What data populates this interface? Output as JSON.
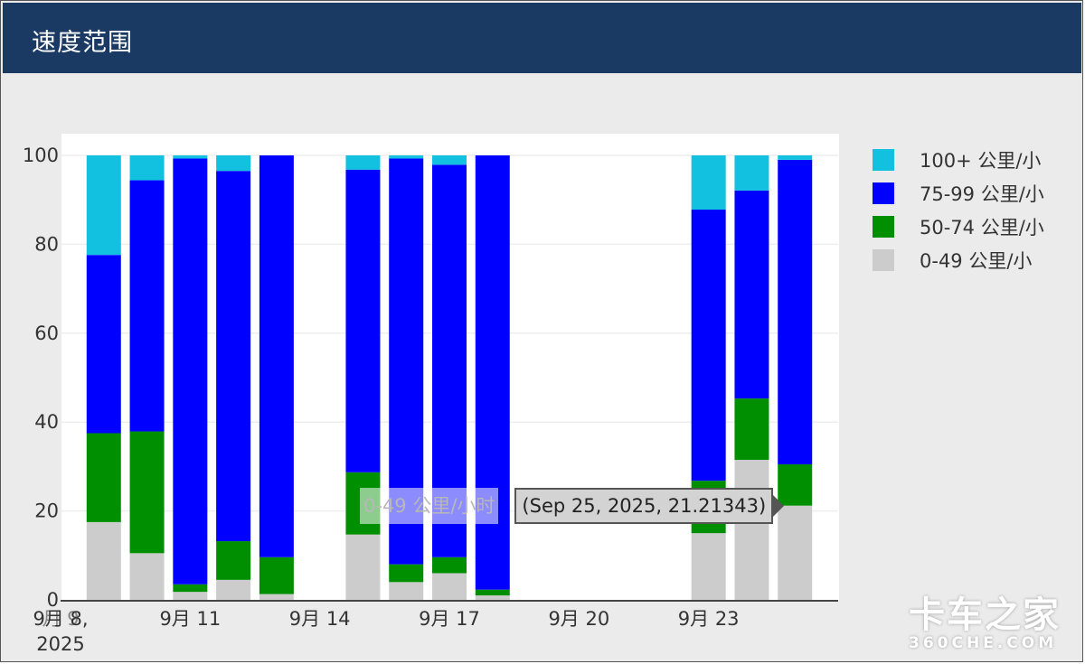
{
  "header": {
    "title": "速度范围"
  },
  "colors": {
    "header_bg": "#1b3a63",
    "panel_bg": "#ebebeb",
    "plot_bg": "#ffffff"
  },
  "chart_data": {
    "type": "bar",
    "stacked": true,
    "title": "速度范围",
    "xlabel": "",
    "ylabel": "",
    "ylim": [
      0,
      100
    ],
    "yticks": [
      0,
      20,
      40,
      60,
      80,
      100
    ],
    "x_day_range": [
      8,
      26
    ],
    "x_ticks": [
      {
        "day": 8,
        "line1": "9月 8,",
        "line2": "2025",
        "overlap_text": "月 9"
      },
      {
        "day": 11,
        "line1": "9月 11"
      },
      {
        "day": 14,
        "line1": "9月 14"
      },
      {
        "day": 17,
        "line1": "9月 17"
      },
      {
        "day": 20,
        "line1": "9月 20"
      },
      {
        "day": 23,
        "line1": "9月 23"
      }
    ],
    "days": [
      9,
      10,
      11,
      12,
      13,
      15,
      16,
      17,
      18,
      23,
      24,
      25
    ],
    "series": [
      {
        "name": "0-49 公里/小时",
        "color": "#cccccc",
        "values": [
          17.5,
          10.5,
          1.8,
          4.5,
          1.3,
          14.7,
          4.0,
          6.0,
          1.0,
          15.0,
          31.5,
          21.2
        ]
      },
      {
        "name": "50-74 公里/小时",
        "color": "#008f00",
        "values": [
          20.0,
          27.4,
          1.7,
          8.7,
          8.3,
          14.0,
          4.0,
          3.6,
          1.3,
          11.8,
          13.8,
          9.3
        ]
      },
      {
        "name": "75-99 公里/小时",
        "color": "#0000ff",
        "values": [
          40.1,
          56.5,
          95.8,
          83.3,
          90.4,
          68.1,
          91.3,
          88.3,
          97.7,
          61.0,
          46.8,
          68.5
        ]
      },
      {
        "name": "100+ 公里/小时",
        "color": "#12c0e0",
        "values": [
          22.4,
          5.6,
          0.7,
          3.5,
          0,
          3.2,
          0.7,
          2.1,
          0,
          12.2,
          7.9,
          1.0
        ]
      }
    ],
    "legend": {
      "position": "right",
      "items": [
        {
          "name": "100+ 公里/小",
          "color": "#12c0e0"
        },
        {
          "name": "75-99 公里/小",
          "color": "#0000ff"
        },
        {
          "name": "50-74 公里/小",
          "color": "#008f00"
        },
        {
          "name": "0-49 公里/小",
          "color": "#cccccc"
        }
      ]
    },
    "tooltip": {
      "series_name": "0-49 公里/小时",
      "value_text": "(Sep 25, 2025, 21.21343)"
    }
  },
  "watermark": {
    "main": "卡车之家",
    "sub": "360CHE.COM"
  }
}
